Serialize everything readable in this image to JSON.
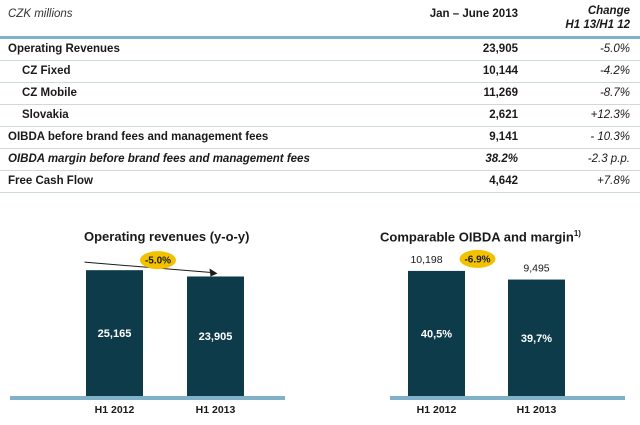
{
  "table": {
    "unit_label": "CZK millions",
    "period_header": "Jan – June 2013",
    "change_header_1": "Change",
    "change_header_2": "H1 13/H1 12",
    "rows": [
      {
        "label": "Operating Revenues",
        "value": "23,905",
        "change": "-5.0%"
      },
      {
        "label": "CZ Fixed",
        "value": "10,144",
        "change": "-4.2%"
      },
      {
        "label": "CZ Mobile",
        "value": "11,269",
        "change": "-8.7%"
      },
      {
        "label": "Slovakia",
        "value": "2,621",
        "change": "+12.3%"
      },
      {
        "label": "OIBDA before brand fees and management fees",
        "value": "9,141",
        "change": "- 10.3%"
      },
      {
        "label": "OIBDA margin before brand fees and management fees",
        "value": "38.2%",
        "change": "-2.3 p.p."
      },
      {
        "label": "Free Cash Flow",
        "value": "4,642",
        "change": "+7.8%"
      }
    ]
  },
  "chart_data": [
    {
      "type": "bar",
      "title": "Operating revenues (y-o-y)",
      "categories": [
        "H1 2012",
        "H1 2013"
      ],
      "values": [
        25165,
        23905
      ],
      "bar_labels": [
        "25,165",
        "23,905"
      ],
      "annotation": "-5.0%",
      "ylim": [
        0,
        26000
      ],
      "bar_color": "#0e3b4a"
    },
    {
      "type": "bar",
      "title": "Comparable OIBDA and margin",
      "title_sup": "1)",
      "categories": [
        "H1 2012",
        "H1 2013"
      ],
      "values": [
        10198,
        9495
      ],
      "top_labels": [
        "10,198",
        "9,495"
      ],
      "bar_labels": [
        "40,5%",
        "39,7%"
      ],
      "annotation": "-6.9%",
      "ylim": [
        0,
        10600
      ],
      "bar_color": "#0e3b4a"
    }
  ],
  "colors": {
    "bar": "#0e3b4a",
    "badge": "#f2c200",
    "baseline": "#7fb2c8"
  }
}
